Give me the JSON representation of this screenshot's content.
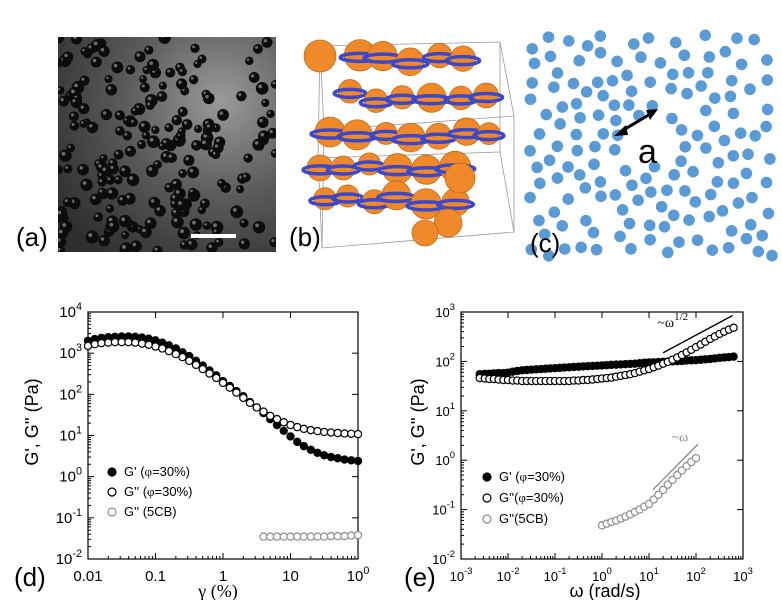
{
  "figure": {
    "panels": {
      "a": {
        "label": "(a)"
      },
      "b": {
        "label": "(b)"
      },
      "c": {
        "label": "(c)",
        "length_label": "a"
      },
      "d": {
        "label": "(d)"
      },
      "e": {
        "label": "(e)"
      }
    },
    "colors": {
      "orange": "#f0892a",
      "blue": "#3b48c9",
      "dot_blue": "#5b9bd5",
      "black": "#000000",
      "grey": "#8c8c8c"
    }
  },
  "chart_data": [
    {
      "id": "d",
      "type": "scatter",
      "xscale": "log",
      "yscale": "log",
      "xlim": [
        0.01,
        100
      ],
      "ylim": [
        0.01,
        10000
      ],
      "xlabel": "γ (%)",
      "ylabel": "G', G'' (Pa)",
      "xticks": [
        "0.01",
        "0.1",
        "1",
        "10",
        "100"
      ],
      "yticks": [
        "10-2",
        "10-1",
        "100",
        "101",
        "102",
        "103",
        "104"
      ],
      "legend": [
        {
          "name": "G' (",
          "phi": "φ",
          "rest": "=30%)",
          "style": "filled-black"
        },
        {
          "name": "G'' (",
          "phi": "φ",
          "rest": "=30%)",
          "style": "open-black"
        },
        {
          "name": "G'' (5CB)",
          "phi": "",
          "rest": "",
          "style": "open-grey"
        }
      ],
      "series": [
        {
          "name": "G' (φ=30%)",
          "style": "filled-black",
          "x": [
            0.01,
            0.0126,
            0.0158,
            0.02,
            0.0251,
            0.0316,
            0.0398,
            0.0501,
            0.0631,
            0.0794,
            0.1,
            0.126,
            0.158,
            0.2,
            0.251,
            0.316,
            0.398,
            0.501,
            0.631,
            0.794,
            1,
            1.26,
            1.58,
            2,
            2.51,
            3.16,
            3.98,
            5.01,
            6.31,
            7.94,
            10,
            12.6,
            15.8,
            20,
            25.1,
            31.6,
            39.8,
            50.1,
            63.1,
            79.4,
            100
          ],
          "y": [
            2000,
            2200,
            2350,
            2450,
            2500,
            2550,
            2550,
            2500,
            2400,
            2250,
            2050,
            1800,
            1550,
            1300,
            1050,
            850,
            650,
            500,
            380,
            290,
            210,
            160,
            120,
            90,
            65,
            48,
            35,
            25,
            18,
            13,
            9.5,
            7,
            5.5,
            4.5,
            3.8,
            3.3,
            3,
            2.8,
            2.6,
            2.5,
            2.4
          ]
        },
        {
          "name": "G'' (φ=30%)",
          "style": "open-black",
          "x": [
            0.01,
            0.0126,
            0.0158,
            0.02,
            0.0251,
            0.0316,
            0.0398,
            0.0501,
            0.0631,
            0.0794,
            0.1,
            0.126,
            0.158,
            0.2,
            0.251,
            0.316,
            0.398,
            0.501,
            0.631,
            0.794,
            1,
            1.26,
            1.58,
            2,
            2.51,
            3.16,
            3.98,
            5.01,
            6.31,
            7.94,
            10,
            12.6,
            15.8,
            20,
            25.1,
            31.6,
            39.8,
            50.1,
            63.1,
            79.4,
            100
          ],
          "y": [
            1500,
            1650,
            1750,
            1800,
            1850,
            1850,
            1850,
            1800,
            1700,
            1600,
            1450,
            1300,
            1120,
            950,
            800,
            650,
            520,
            410,
            320,
            250,
            190,
            145,
            110,
            82,
            62,
            48,
            38,
            30,
            25,
            21,
            18,
            16,
            14.5,
            13.5,
            12.8,
            12.2,
            11.8,
            11.5,
            11.2,
            11,
            10.8
          ]
        },
        {
          "name": "G'' (5CB)",
          "style": "open-grey",
          "x": [
            3.98,
            5.01,
            6.31,
            7.94,
            10,
            12.6,
            15.8,
            20,
            25.1,
            31.6,
            39.8,
            50.1,
            63.1,
            79.4,
            100
          ],
          "y": [
            0.035,
            0.035,
            0.035,
            0.035,
            0.035,
            0.035,
            0.035,
            0.035,
            0.035,
            0.035,
            0.036,
            0.036,
            0.036,
            0.037,
            0.038
          ]
        }
      ]
    },
    {
      "id": "e",
      "type": "scatter",
      "xscale": "log",
      "yscale": "log",
      "xlim": [
        0.001,
        1000
      ],
      "ylim": [
        0.01,
        1000
      ],
      "xlabel": "ω (rad/s)",
      "ylabel": "G', G'' (Pa)",
      "xticks": [
        "10-3",
        "10-2",
        "10-1",
        "100",
        "101",
        "102",
        "103"
      ],
      "yticks": [
        "10-2",
        "10-1",
        "100",
        "101",
        "102",
        "103"
      ],
      "legend": [
        {
          "name": "G' (",
          "phi": "φ",
          "rest": "=30%)",
          "style": "filled-black"
        },
        {
          "name": "G''(",
          "phi": "φ",
          "rest": "=30%)",
          "style": "open-black"
        },
        {
          "name": "G''(5CB)",
          "phi": "",
          "rest": "",
          "style": "open-grey"
        }
      ],
      "annotations": [
        {
          "text": "~ω",
          "sup": "1/2",
          "x": 15,
          "y": 500,
          "color": "black"
        },
        {
          "text": "~ω",
          "sup": "",
          "x": 30,
          "y": 2.4,
          "color": "grey"
        }
      ],
      "lines": [
        {
          "x": [
            20,
            600
          ],
          "y": [
            150,
            850
          ],
          "color": "black"
        },
        {
          "x": [
            12,
            110
          ],
          "y": [
            0.25,
            2.1
          ],
          "color": "grey"
        }
      ],
      "series": [
        {
          "name": "G' (φ=30%)",
          "style": "filled-black",
          "x": [
            0.0025,
            0.0032,
            0.004,
            0.005,
            0.0063,
            0.008,
            0.01,
            0.0126,
            0.0158,
            0.02,
            0.0251,
            0.0316,
            0.0398,
            0.0501,
            0.0631,
            0.0794,
            0.1,
            0.126,
            0.158,
            0.2,
            0.251,
            0.316,
            0.398,
            0.501,
            0.631,
            0.794,
            1,
            1.26,
            1.58,
            2,
            2.51,
            3.16,
            3.98,
            5.01,
            6.31,
            7.94,
            10,
            12.6,
            15.8,
            20,
            25.1,
            31.6,
            39.8,
            50.1,
            63.1,
            79.4,
            100,
            126,
            158,
            200,
            251,
            316,
            398,
            501,
            631
          ],
          "y": [
            55,
            56,
            56,
            57,
            58,
            58,
            59,
            62,
            64,
            66,
            67,
            68,
            69,
            70,
            71,
            72,
            73,
            74,
            75,
            76,
            77,
            78,
            79,
            80,
            81,
            82,
            83,
            84,
            85,
            86,
            87,
            88,
            89,
            90,
            92,
            94,
            95,
            96,
            97,
            98,
            99,
            100,
            101,
            102,
            104,
            105,
            106,
            108,
            110,
            112,
            115,
            118,
            120,
            122,
            125
          ]
        },
        {
          "name": "G'' (φ=30%)",
          "style": "open-black",
          "x": [
            0.0025,
            0.0032,
            0.004,
            0.005,
            0.0063,
            0.008,
            0.01,
            0.0126,
            0.0158,
            0.02,
            0.0251,
            0.0316,
            0.0398,
            0.0501,
            0.0631,
            0.0794,
            0.1,
            0.126,
            0.158,
            0.2,
            0.251,
            0.316,
            0.398,
            0.501,
            0.631,
            0.794,
            1,
            1.26,
            1.58,
            2,
            2.51,
            3.16,
            3.98,
            5.01,
            6.31,
            7.94,
            10,
            12.6,
            15.8,
            20,
            25.1,
            31.6,
            39.8,
            50.1,
            63.1,
            79.4,
            100,
            126,
            158,
            200,
            251,
            316,
            398,
            501,
            631
          ],
          "y": [
            46,
            45,
            44,
            44,
            43,
            42,
            42,
            41,
            41,
            40,
            40,
            40,
            40,
            40,
            40,
            40,
            40,
            40,
            40,
            40,
            41,
            41,
            42,
            42,
            43,
            44,
            45,
            46,
            47,
            49,
            51,
            53,
            55,
            58,
            62,
            66,
            70,
            76,
            82,
            90,
            98,
            108,
            120,
            135,
            152,
            172,
            195,
            220,
            250,
            285,
            320,
            360,
            400,
            440,
            480
          ]
        },
        {
          "name": "G'' (5CB)",
          "style": "open-grey",
          "x": [
            1,
            1.26,
            1.58,
            2,
            2.51,
            3.16,
            3.98,
            5.01,
            6.31,
            7.94,
            10,
            12.6,
            15.8,
            20,
            25.1,
            31.6,
            39.8,
            50.1,
            63.1,
            79.4,
            100
          ],
          "y": [
            0.048,
            0.052,
            0.056,
            0.06,
            0.066,
            0.072,
            0.08,
            0.09,
            0.1,
            0.115,
            0.13,
            0.16,
            0.2,
            0.25,
            0.32,
            0.4,
            0.5,
            0.62,
            0.76,
            0.92,
            1.1
          ]
        }
      ]
    }
  ]
}
